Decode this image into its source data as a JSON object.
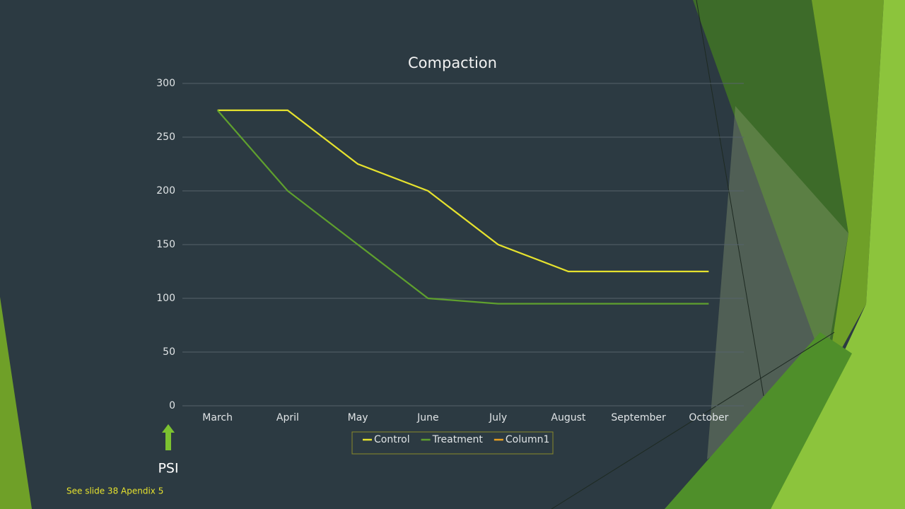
{
  "chart_data": {
    "type": "line",
    "title": "Compaction",
    "categories": [
      "March",
      "April",
      "May",
      "June",
      "July",
      "August",
      "September",
      "October"
    ],
    "series": [
      {
        "name": "Control",
        "color": "#e6e22e",
        "values": [
          275,
          275,
          225,
          200,
          150,
          125,
          125,
          125
        ]
      },
      {
        "name": "Treatment",
        "color": "#5fa02e",
        "values": [
          275,
          200,
          150,
          100,
          95,
          95,
          95,
          95
        ]
      },
      {
        "name": "Column1",
        "color": "#e8a020",
        "values": [
          null,
          null,
          null,
          null,
          null,
          null,
          null,
          null
        ]
      }
    ],
    "ylim": [
      0,
      300
    ],
    "yticks": [
      0,
      50,
      100,
      150,
      200,
      250,
      300
    ],
    "grid": true,
    "legend": "bottom",
    "annotations": [
      "PSI"
    ]
  },
  "footnote": "See slide 38 Apendix 5"
}
